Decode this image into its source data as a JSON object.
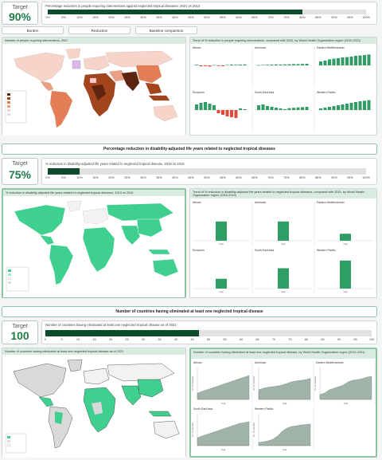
{
  "section1": {
    "target_label": "Target",
    "target_value": "90%",
    "progress_title": "Percentage reduction in people requiring interventions against neglected tropical diseases, 2021 vs 2010",
    "progress": 0.8,
    "ticks": [
      "0%",
      "5%",
      "10%",
      "15%",
      "20%",
      "25%",
      "30%",
      "35%",
      "40%",
      "45%",
      "50%",
      "55%",
      "60%",
      "65%",
      "70%",
      "75%",
      "80%",
      "85%",
      "90%",
      "95%",
      "100%"
    ],
    "tabs": [
      "Burden",
      "Reduction",
      "Baseline comparison"
    ],
    "map_title": "Number of people requiring interventions, 2021",
    "small_multiples_title": "Trend of % reduction in people requiring interventions, compared with 2010, by World Health Organization region (2010-2021)",
    "regions": [
      "African",
      "Americas",
      "Eastern Mediterranean",
      "European",
      "South-East Asia",
      "Western Pacific"
    ]
  },
  "section2": {
    "header": "Percentage reduction in disability-adjusted life years related to neglected tropical diseases",
    "target_label": "Target",
    "target_value": "75%",
    "progress_title": "% reduction in disability-adjusted life years related to neglected tropical disease, 2019 vs 2015",
    "progress": 0.1,
    "ticks": [
      "0%",
      "5%",
      "10%",
      "15%",
      "20%",
      "25%",
      "30%",
      "35%",
      "40%",
      "45%",
      "50%",
      "55%",
      "60%",
      "65%",
      "70%",
      "75%",
      "80%",
      "85%",
      "90%",
      "95%",
      "100%"
    ],
    "map_title": "% reduction in disability-adjusted life years related to neglected tropical diseases, 2019 vs 2015",
    "small_multiples_title": "Trend of % reduction in disability-adjusted life years related to neglected tropical diseases, compared with 2015, by World Health Organization region (2015-2019)",
    "regions": [
      "African",
      "Americas",
      "Eastern Mediterranean",
      "European",
      "South-East Asia",
      "Western Pacific"
    ],
    "values": [
      0.55,
      0.55,
      0.2,
      0.28,
      0.58,
      0.8
    ],
    "axis_label": "Year"
  },
  "section3": {
    "header": "Number of countries having eliminated at least one neglected tropical disease",
    "target_label": "Target",
    "target_value": "100",
    "progress_title": "Number of countries having eliminated at least one neglected tropical disease as of 2021",
    "progress": 0.47,
    "ticks": [
      "0",
      "5",
      "10",
      "15",
      "20",
      "25",
      "30",
      "35",
      "40",
      "45",
      "50",
      "55",
      "60",
      "65",
      "70",
      "75",
      "80",
      "85",
      "90",
      "95",
      "100"
    ],
    "map_title": "Number of countries having eliminated at least one neglected tropical disease as of 2021",
    "small_multiples_title": "Number of countries having eliminated at least one neglected tropical disease, by World Health Organization region (2010-2021)",
    "regions": [
      "African",
      "Americas",
      "Eastern Mediterranean",
      "South-East Asia",
      "Western Pacific"
    ],
    "y_label": "No. of countries",
    "axis_label": "Year"
  },
  "colors": {
    "accent": "#1f7a4a",
    "dark_fill": "#0e4a2c",
    "map_green": "#3fcf8e",
    "map_brown": "#8a3a12",
    "area_fill": "#9fb3a8",
    "bar_green": "#2f9e65",
    "bar_red": "#e04a3c"
  }
}
